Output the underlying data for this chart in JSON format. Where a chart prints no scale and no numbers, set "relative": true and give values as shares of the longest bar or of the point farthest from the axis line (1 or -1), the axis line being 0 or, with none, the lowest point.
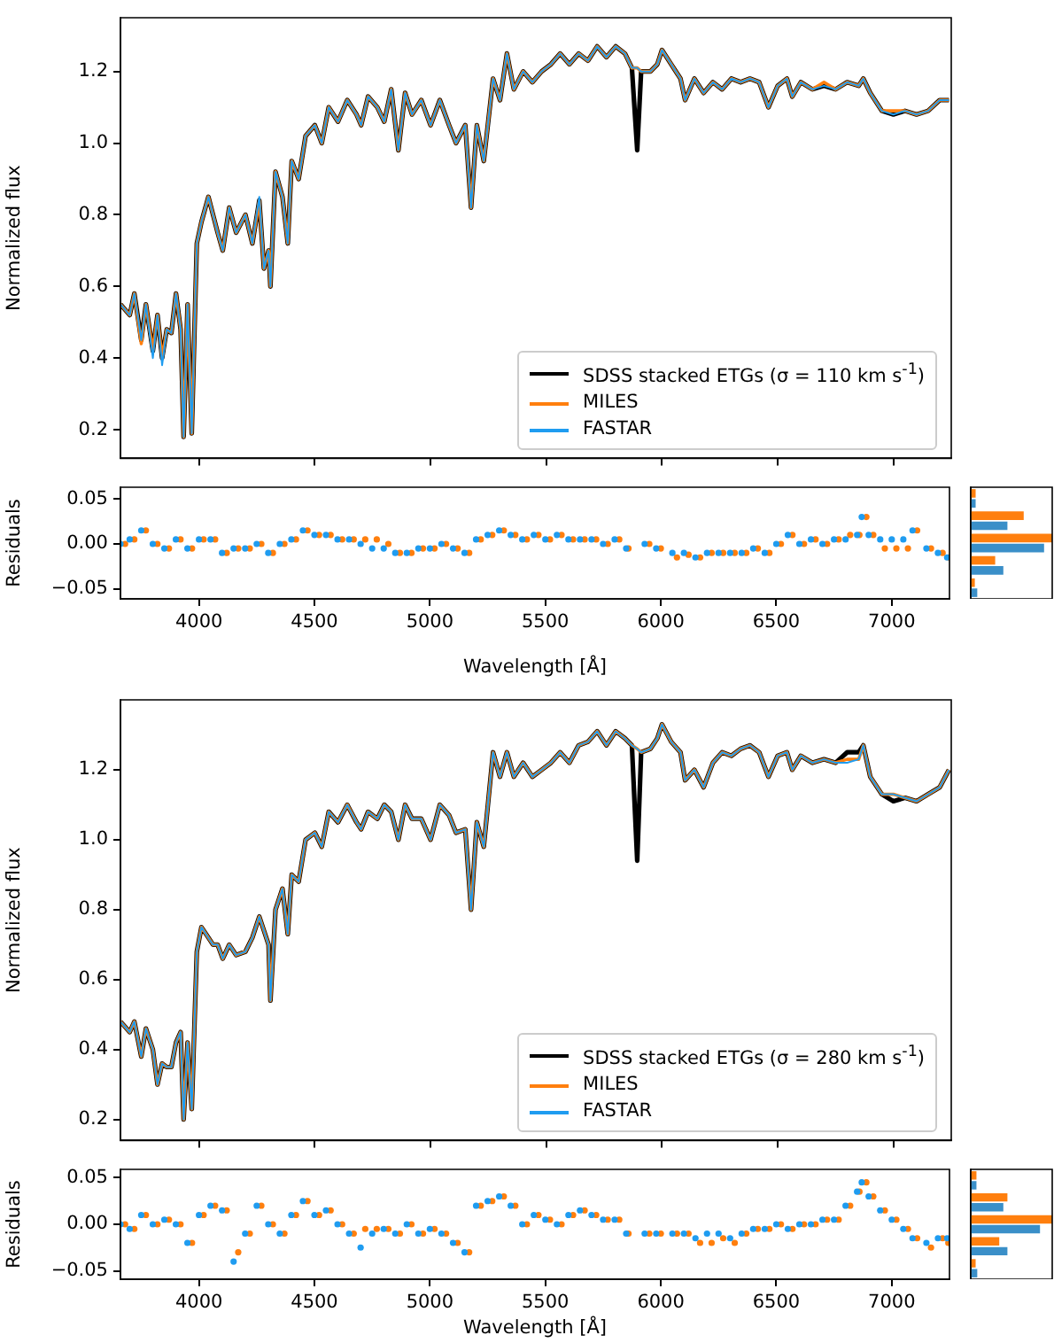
{
  "chart_data": [
    {
      "type": "line",
      "ylabel": "Normalized flux",
      "xlim": [
        3660,
        7250
      ],
      "xticks": [
        {
          "value": 4000,
          "label": null
        },
        {
          "value": 4500,
          "label": null
        },
        {
          "value": 5000,
          "label": null
        },
        {
          "value": 5500,
          "label": null
        },
        {
          "value": 6000,
          "label": null
        },
        {
          "value": 6500,
          "label": null
        },
        {
          "value": 7000,
          "label": null
        }
      ],
      "ylim": [
        0.12,
        1.35
      ],
      "yticks": [
        0.2,
        0.4,
        0.6,
        0.8,
        {
          "value": 1,
          "label": "1.0"
        },
        1.2
      ],
      "tick_labels": "y",
      "legend": "bottom right",
      "x": [
        3660,
        3700,
        3720,
        3750,
        3770,
        3800,
        3820,
        3840,
        3860,
        3880,
        3900,
        3920,
        3933,
        3950,
        3968,
        3990,
        4010,
        4040,
        4060,
        4080,
        4102,
        4130,
        4160,
        4200,
        4230,
        4260,
        4280,
        4300,
        4308,
        4330,
        4360,
        4383,
        4400,
        4430,
        4460,
        4500,
        4530,
        4560,
        4600,
        4640,
        4680,
        4700,
        4730,
        4770,
        4800,
        4830,
        4861,
        4890,
        4920,
        4960,
        5000,
        5040,
        5080,
        5110,
        5150,
        5175,
        5200,
        5230,
        5270,
        5300,
        5330,
        5360,
        5400,
        5440,
        5480,
        5520,
        5560,
        5600,
        5640,
        5680,
        5720,
        5760,
        5800,
        5840,
        5870,
        5893,
        5910,
        5950,
        5980,
        6000,
        6040,
        6080,
        6100,
        6140,
        6180,
        6220,
        6260,
        6300,
        6340,
        6380,
        6420,
        6460,
        6500,
        6540,
        6563,
        6600,
        6650,
        6700,
        6750,
        6800,
        6850,
        6870,
        6900,
        6950,
        7000,
        7050,
        7100,
        7150,
        7200,
        7240
      ],
      "series": [
        {
          "name": "SDSS stacked ETGs (σ = 110 km s$^{-1}$)",
          "color": "#000000",
          "values": [
            0.55,
            0.52,
            0.58,
            0.45,
            0.55,
            0.42,
            0.52,
            0.4,
            0.48,
            0.47,
            0.58,
            0.48,
            0.18,
            0.55,
            0.19,
            0.72,
            0.78,
            0.85,
            0.8,
            0.75,
            0.7,
            0.82,
            0.75,
            0.8,
            0.72,
            0.84,
            0.65,
            0.7,
            0.6,
            0.92,
            0.85,
            0.72,
            0.95,
            0.9,
            1.02,
            1.05,
            1.0,
            1.1,
            1.06,
            1.12,
            1.08,
            1.05,
            1.13,
            1.1,
            1.06,
            1.15,
            0.98,
            1.14,
            1.08,
            1.12,
            1.05,
            1.12,
            1.05,
            1.0,
            1.05,
            0.82,
            1.05,
            0.95,
            1.18,
            1.12,
            1.25,
            1.15,
            1.2,
            1.17,
            1.2,
            1.22,
            1.25,
            1.22,
            1.25,
            1.23,
            1.27,
            1.24,
            1.27,
            1.25,
            1.21,
            0.98,
            1.2,
            1.2,
            1.22,
            1.26,
            1.22,
            1.18,
            1.12,
            1.18,
            1.14,
            1.17,
            1.15,
            1.18,
            1.17,
            1.18,
            1.17,
            1.1,
            1.16,
            1.18,
            1.13,
            1.17,
            1.15,
            1.16,
            1.15,
            1.17,
            1.16,
            1.18,
            1.14,
            1.09,
            1.08,
            1.09,
            1.08,
            1.09,
            1.12,
            1.12
          ]
        },
        {
          "name": "MILES",
          "color": "#ff7f0e",
          "values": [
            0.55,
            0.52,
            0.58,
            0.44,
            0.55,
            0.42,
            0.52,
            0.4,
            0.48,
            0.47,
            0.58,
            0.48,
            0.18,
            0.55,
            0.19,
            0.72,
            0.78,
            0.85,
            0.8,
            0.75,
            0.7,
            0.82,
            0.75,
            0.8,
            0.72,
            0.84,
            0.65,
            0.7,
            0.6,
            0.92,
            0.85,
            0.72,
            0.95,
            0.9,
            1.02,
            1.05,
            1.0,
            1.1,
            1.06,
            1.12,
            1.08,
            1.05,
            1.13,
            1.1,
            1.06,
            1.15,
            0.98,
            1.14,
            1.08,
            1.12,
            1.05,
            1.12,
            1.05,
            1.0,
            1.05,
            0.82,
            1.05,
            0.95,
            1.18,
            1.12,
            1.25,
            1.15,
            1.2,
            1.17,
            1.2,
            1.22,
            1.25,
            1.22,
            1.25,
            1.23,
            1.27,
            1.24,
            1.27,
            1.25,
            1.21,
            1.21,
            1.2,
            1.2,
            1.22,
            1.26,
            1.22,
            1.18,
            1.12,
            1.18,
            1.14,
            1.17,
            1.15,
            1.18,
            1.17,
            1.18,
            1.17,
            1.1,
            1.16,
            1.18,
            1.13,
            1.17,
            1.15,
            1.17,
            1.15,
            1.17,
            1.16,
            1.18,
            1.14,
            1.09,
            1.09,
            1.09,
            1.08,
            1.09,
            1.12,
            1.12
          ]
        },
        {
          "name": "FASTAR",
          "color": "#1f9cf0",
          "values": [
            0.55,
            0.52,
            0.58,
            0.45,
            0.55,
            0.4,
            0.52,
            0.38,
            0.48,
            0.47,
            0.58,
            0.48,
            0.18,
            0.55,
            0.19,
            0.72,
            0.78,
            0.85,
            0.8,
            0.75,
            0.7,
            0.82,
            0.75,
            0.8,
            0.72,
            0.85,
            0.65,
            0.7,
            0.6,
            0.92,
            0.85,
            0.72,
            0.95,
            0.9,
            1.02,
            1.05,
            1.0,
            1.1,
            1.06,
            1.12,
            1.08,
            1.05,
            1.13,
            1.1,
            1.06,
            1.15,
            0.98,
            1.14,
            1.08,
            1.12,
            1.05,
            1.12,
            1.05,
            1.0,
            1.05,
            0.82,
            1.05,
            0.95,
            1.18,
            1.12,
            1.25,
            1.15,
            1.2,
            1.17,
            1.2,
            1.22,
            1.25,
            1.22,
            1.25,
            1.23,
            1.27,
            1.24,
            1.27,
            1.25,
            1.21,
            1.21,
            1.2,
            1.2,
            1.22,
            1.26,
            1.22,
            1.18,
            1.12,
            1.18,
            1.14,
            1.17,
            1.15,
            1.18,
            1.17,
            1.18,
            1.17,
            1.1,
            1.16,
            1.18,
            1.13,
            1.17,
            1.15,
            1.16,
            1.15,
            1.17,
            1.16,
            1.18,
            1.14,
            1.09,
            1.08,
            1.09,
            1.08,
            1.09,
            1.12,
            1.12
          ]
        }
      ]
    },
    {
      "type": "scatter",
      "marker": "circle",
      "xlabel": "Wavelength [Å]",
      "ylabel": "Residuals",
      "xlim": [
        3660,
        7250
      ],
      "xticks": [
        4000,
        4500,
        5000,
        5500,
        6000,
        6500,
        7000
      ],
      "ylim": [
        -0.061,
        0.063
      ],
      "yticks": [
        {
          "value": -0.05,
          "label": "−0.05"
        },
        {
          "value": 0,
          "label": "0.00"
        },
        0.05
      ],
      "x": [
        3660,
        3700,
        3750,
        3800,
        3850,
        3900,
        3950,
        4000,
        4050,
        4100,
        4150,
        4200,
        4250,
        4300,
        4350,
        4400,
        4450,
        4500,
        4550,
        4600,
        4650,
        4700,
        4750,
        4800,
        4850,
        4900,
        4950,
        5000,
        5050,
        5100,
        5150,
        5200,
        5250,
        5300,
        5350,
        5400,
        5450,
        5500,
        5550,
        5600,
        5650,
        5700,
        5750,
        5800,
        5850,
        5890,
        5930,
        5980,
        6050,
        6100,
        6150,
        6200,
        6250,
        6300,
        6350,
        6400,
        6450,
        6500,
        6550,
        6600,
        6650,
        6700,
        6750,
        6800,
        6850,
        6870,
        6900,
        6950,
        7000,
        7050,
        7090,
        7150,
        7200,
        7240
      ],
      "series": [
        {
          "color": "#ff7f0e",
          "x": [
            3680,
            3720,
            3770,
            3820,
            3870,
            3920,
            3970,
            4020,
            4070,
            4120,
            4170,
            4220,
            4270,
            4320,
            4370,
            4420,
            4470,
            4520,
            4570,
            4620,
            4670,
            4720,
            4770,
            4820,
            4870,
            4920,
            4970,
            5020,
            5070,
            5120,
            5170,
            5220,
            5270,
            5320,
            5370,
            5420,
            5470,
            5520,
            5570,
            5620,
            5670,
            5720,
            5770,
            5820,
            5860,
            5910,
            5950,
            6000,
            6070,
            6120,
            6170,
            6220,
            6270,
            6320,
            6370,
            6420,
            6470,
            6520,
            6570,
            6620,
            6670,
            6720,
            6770,
            6820,
            6860,
            6890,
            6920,
            6970,
            7020,
            7070,
            7110,
            7170,
            7220,
            7245
          ],
          "values": [
            0.0,
            0.005,
            0.015,
            0.0,
            -0.005,
            0.005,
            -0.005,
            0.005,
            0.005,
            -0.01,
            -0.005,
            -0.005,
            0.0,
            -0.01,
            0.0,
            0.005,
            0.015,
            0.01,
            0.01,
            0.005,
            0.005,
            0.005,
            0.005,
            0.0,
            -0.01,
            -0.01,
            -0.005,
            -0.005,
            0.0,
            -0.005,
            -0.01,
            0.005,
            0.01,
            0.015,
            0.01,
            0.005,
            0.01,
            0.005,
            0.01,
            0.005,
            0.005,
            0.005,
            0.0,
            0.005,
            -0.005,
            null,
            0.0,
            -0.005,
            -0.015,
            -0.012,
            -0.015,
            -0.01,
            -0.01,
            -0.01,
            -0.01,
            -0.005,
            -0.01,
            0.0,
            0.01,
            0.0,
            0.005,
            0.0,
            0.005,
            0.01,
            0.01,
            0.03,
            0.01,
            -0.005,
            -0.005,
            -0.005,
            0.015,
            -0.005,
            -0.01,
            -0.015
          ]
        },
        {
          "color": "#1f9cf0",
          "values": [
            0.0,
            0.005,
            0.015,
            0.0,
            -0.005,
            0.005,
            -0.005,
            0.005,
            0.005,
            -0.01,
            -0.005,
            -0.005,
            0.0,
            -0.01,
            0.0,
            0.005,
            0.015,
            0.01,
            0.01,
            0.005,
            0.005,
            0.0,
            -0.005,
            -0.005,
            -0.01,
            -0.01,
            -0.005,
            -0.005,
            0.0,
            -0.005,
            -0.01,
            0.005,
            0.01,
            0.015,
            0.01,
            0.005,
            0.01,
            0.005,
            0.01,
            0.005,
            0.005,
            0.005,
            0.0,
            0.005,
            -0.005,
            null,
            0.0,
            -0.005,
            -0.01,
            -0.01,
            -0.015,
            -0.01,
            -0.01,
            -0.01,
            -0.01,
            -0.005,
            -0.01,
            0.0,
            0.01,
            0.0,
            0.005,
            0.0,
            0.005,
            0.005,
            0.01,
            0.03,
            0.01,
            0.005,
            0.005,
            0.005,
            0.015,
            -0.005,
            -0.01,
            -0.015
          ]
        }
      ]
    },
    {
      "type": "bar",
      "orientation": "horizontal",
      "relative": true,
      "tick_labels": false,
      "categories": [
        null,
        null,
        null,
        null,
        null
      ],
      "series": [
        {
          "color": "#ff7f0e",
          "values": [
            0.06,
            0.65,
            1.0,
            0.3,
            0.05
          ]
        },
        {
          "color": "#3a8fc8",
          "values": [
            0.06,
            0.45,
            0.9,
            0.4,
            0.08
          ]
        }
      ]
    },
    {
      "type": "line",
      "ylabel": "Normalized flux",
      "xlim": [
        3660,
        7250
      ],
      "xticks": [
        {
          "value": 4000,
          "label": null
        },
        {
          "value": 4500,
          "label": null
        },
        {
          "value": 5000,
          "label": null
        },
        {
          "value": 5500,
          "label": null
        },
        {
          "value": 6000,
          "label": null
        },
        {
          "value": 6500,
          "label": null
        },
        {
          "value": 7000,
          "label": null
        }
      ],
      "ylim": [
        0.14,
        1.4
      ],
      "yticks": [
        0.2,
        0.4,
        0.6,
        0.8,
        {
          "value": 1,
          "label": "1.0"
        },
        1.2
      ],
      "tick_labels": "y",
      "legend": "bottom right",
      "x": [
        3660,
        3700,
        3720,
        3750,
        3770,
        3800,
        3820,
        3840,
        3860,
        3880,
        3900,
        3920,
        3933,
        3950,
        3968,
        3990,
        4010,
        4040,
        4060,
        4080,
        4102,
        4130,
        4160,
        4200,
        4230,
        4260,
        4280,
        4300,
        4308,
        4330,
        4360,
        4383,
        4400,
        4430,
        4460,
        4500,
        4530,
        4560,
        4600,
        4640,
        4680,
        4700,
        4730,
        4770,
        4800,
        4830,
        4861,
        4890,
        4920,
        4960,
        5000,
        5040,
        5080,
        5110,
        5150,
        5175,
        5200,
        5230,
        5270,
        5300,
        5330,
        5360,
        5400,
        5440,
        5480,
        5520,
        5560,
        5600,
        5640,
        5680,
        5720,
        5760,
        5800,
        5840,
        5870,
        5893,
        5910,
        5950,
        5980,
        6000,
        6040,
        6080,
        6100,
        6140,
        6180,
        6220,
        6260,
        6300,
        6340,
        6380,
        6420,
        6460,
        6500,
        6540,
        6563,
        6600,
        6650,
        6700,
        6750,
        6800,
        6850,
        6870,
        6900,
        6950,
        7000,
        7050,
        7100,
        7150,
        7200,
        7240
      ],
      "series": [
        {
          "name": "SDSS stacked ETGs (σ = 280 km s$^{-1}$)",
          "color": "#000000",
          "values": [
            0.48,
            0.45,
            0.48,
            0.38,
            0.46,
            0.4,
            0.3,
            0.36,
            0.35,
            0.35,
            0.42,
            0.45,
            0.2,
            0.42,
            0.23,
            0.68,
            0.75,
            0.72,
            0.7,
            0.7,
            0.66,
            0.7,
            0.67,
            0.68,
            0.72,
            0.78,
            0.74,
            0.7,
            0.54,
            0.8,
            0.86,
            0.73,
            0.9,
            0.88,
            1.0,
            1.02,
            0.98,
            1.08,
            1.05,
            1.1,
            1.05,
            1.03,
            1.08,
            1.06,
            1.1,
            1.08,
            1.0,
            1.1,
            1.06,
            1.06,
            1.0,
            1.1,
            1.07,
            1.02,
            1.03,
            0.8,
            1.05,
            0.98,
            1.25,
            1.18,
            1.25,
            1.18,
            1.22,
            1.18,
            1.2,
            1.22,
            1.25,
            1.22,
            1.27,
            1.28,
            1.31,
            1.27,
            1.31,
            1.29,
            1.27,
            0.94,
            1.25,
            1.26,
            1.29,
            1.33,
            1.28,
            1.25,
            1.17,
            1.2,
            1.15,
            1.22,
            1.25,
            1.24,
            1.26,
            1.27,
            1.25,
            1.18,
            1.24,
            1.25,
            1.2,
            1.24,
            1.22,
            1.23,
            1.22,
            1.25,
            1.25,
            1.27,
            1.18,
            1.13,
            1.11,
            1.12,
            1.11,
            1.13,
            1.15,
            1.2
          ]
        },
        {
          "name": "MILES",
          "color": "#ff7f0e",
          "values": [
            0.48,
            0.45,
            0.48,
            0.38,
            0.46,
            0.4,
            0.3,
            0.36,
            0.35,
            0.35,
            0.42,
            0.45,
            0.2,
            0.42,
            0.23,
            0.68,
            0.75,
            0.72,
            0.7,
            0.7,
            0.66,
            0.7,
            0.67,
            0.68,
            0.72,
            0.78,
            0.74,
            0.7,
            0.54,
            0.8,
            0.86,
            0.73,
            0.9,
            0.88,
            1.0,
            1.02,
            0.98,
            1.08,
            1.05,
            1.1,
            1.05,
            1.03,
            1.08,
            1.06,
            1.1,
            1.08,
            1.0,
            1.1,
            1.06,
            1.06,
            1.0,
            1.1,
            1.07,
            1.02,
            1.03,
            0.8,
            1.05,
            0.98,
            1.25,
            1.18,
            1.25,
            1.18,
            1.22,
            1.18,
            1.2,
            1.22,
            1.25,
            1.22,
            1.27,
            1.28,
            1.31,
            1.27,
            1.31,
            1.29,
            1.27,
            1.26,
            1.25,
            1.26,
            1.29,
            1.33,
            1.28,
            1.25,
            1.17,
            1.2,
            1.15,
            1.22,
            1.25,
            1.24,
            1.26,
            1.27,
            1.25,
            1.18,
            1.24,
            1.25,
            1.2,
            1.24,
            1.22,
            1.23,
            1.22,
            1.23,
            1.23,
            1.27,
            1.18,
            1.13,
            1.13,
            1.12,
            1.11,
            1.13,
            1.15,
            1.2
          ]
        },
        {
          "name": "FASTAR",
          "color": "#1f9cf0",
          "values": [
            0.48,
            0.45,
            0.48,
            0.38,
            0.46,
            0.4,
            0.3,
            0.36,
            0.35,
            0.35,
            0.42,
            0.45,
            0.2,
            0.42,
            0.23,
            0.68,
            0.75,
            0.72,
            0.7,
            0.7,
            0.66,
            0.7,
            0.67,
            0.68,
            0.72,
            0.78,
            0.74,
            0.7,
            0.54,
            0.8,
            0.86,
            0.73,
            0.9,
            0.88,
            1.0,
            1.02,
            0.98,
            1.08,
            1.05,
            1.1,
            1.05,
            1.03,
            1.08,
            1.06,
            1.1,
            1.08,
            1.0,
            1.1,
            1.06,
            1.06,
            1.0,
            1.1,
            1.07,
            1.02,
            1.03,
            0.8,
            1.05,
            0.98,
            1.25,
            1.18,
            1.25,
            1.18,
            1.22,
            1.18,
            1.2,
            1.22,
            1.25,
            1.22,
            1.27,
            1.28,
            1.31,
            1.27,
            1.31,
            1.29,
            1.27,
            1.26,
            1.25,
            1.26,
            1.29,
            1.33,
            1.28,
            1.25,
            1.17,
            1.2,
            1.15,
            1.22,
            1.25,
            1.24,
            1.26,
            1.27,
            1.25,
            1.18,
            1.24,
            1.25,
            1.2,
            1.24,
            1.22,
            1.23,
            1.22,
            1.22,
            1.23,
            1.27,
            1.18,
            1.13,
            1.13,
            1.12,
            1.11,
            1.13,
            1.15,
            1.2
          ]
        }
      ]
    },
    {
      "type": "scatter",
      "marker": "circle",
      "xlabel": "Wavelength [Å]",
      "ylabel": "Residuals",
      "xlim": [
        3660,
        7250
      ],
      "xticks": [
        4000,
        4500,
        5000,
        5500,
        6000,
        6500,
        7000
      ],
      "ylim": [
        -0.059,
        0.059
      ],
      "yticks": [
        {
          "value": -0.05,
          "label": "−0.05"
        },
        {
          "value": 0,
          "label": "0.00"
        },
        0.05
      ],
      "x": [
        3660,
        3700,
        3750,
        3800,
        3850,
        3900,
        3950,
        4000,
        4050,
        4100,
        4150,
        4200,
        4250,
        4300,
        4350,
        4400,
        4450,
        4500,
        4550,
        4600,
        4650,
        4700,
        4750,
        4800,
        4850,
        4900,
        4950,
        5000,
        5050,
        5100,
        5150,
        5200,
        5250,
        5300,
        5350,
        5400,
        5450,
        5500,
        5550,
        5600,
        5650,
        5700,
        5750,
        5800,
        5850,
        5890,
        5930,
        5980,
        6050,
        6100,
        6150,
        6200,
        6250,
        6300,
        6350,
        6400,
        6450,
        6500,
        6550,
        6600,
        6650,
        6700,
        6750,
        6800,
        6850,
        6870,
        6900,
        6950,
        7000,
        7050,
        7090,
        7150,
        7200,
        7240
      ],
      "series": [
        {
          "color": "#ff7f0e",
          "x": [
            3680,
            3720,
            3770,
            3820,
            3870,
            3920,
            3970,
            4020,
            4070,
            4120,
            4170,
            4220,
            4270,
            4320,
            4370,
            4420,
            4470,
            4520,
            4570,
            4620,
            4670,
            4720,
            4770,
            4820,
            4870,
            4920,
            4970,
            5020,
            5070,
            5120,
            5170,
            5220,
            5270,
            5320,
            5370,
            5420,
            5470,
            5520,
            5570,
            5620,
            5670,
            5720,
            5770,
            5820,
            5860,
            5910,
            5950,
            6000,
            6070,
            6120,
            6170,
            6220,
            6270,
            6320,
            6370,
            6420,
            6470,
            6520,
            6570,
            6620,
            6670,
            6720,
            6770,
            6820,
            6860,
            6890,
            6920,
            6970,
            7020,
            7070,
            7110,
            7170,
            7220,
            7245
          ],
          "values": [
            0.0,
            -0.005,
            0.01,
            0.0,
            0.005,
            0.0,
            -0.02,
            0.01,
            0.02,
            0.015,
            -0.03,
            -0.01,
            0.02,
            0.0,
            -0.01,
            0.01,
            0.025,
            0.01,
            0.015,
            0.0,
            -0.01,
            -0.005,
            -0.005,
            -0.005,
            -0.01,
            0.0,
            -0.01,
            -0.005,
            -0.01,
            -0.02,
            -0.03,
            0.02,
            0.025,
            0.03,
            0.02,
            0.0,
            0.01,
            0.005,
            0.0,
            0.01,
            0.015,
            0.01,
            0.005,
            0.005,
            -0.01,
            null,
            -0.01,
            -0.01,
            -0.01,
            -0.01,
            -0.02,
            -0.02,
            -0.015,
            -0.02,
            -0.01,
            -0.005,
            -0.005,
            0.0,
            -0.005,
            0.0,
            0.0,
            0.005,
            0.005,
            0.02,
            0.035,
            0.045,
            0.03,
            0.015,
            0.005,
            -0.005,
            -0.015,
            -0.025,
            -0.015,
            -0.02
          ]
        },
        {
          "color": "#1f9cf0",
          "values": [
            0.0,
            -0.005,
            0.01,
            0.0,
            0.005,
            0.0,
            -0.02,
            0.01,
            0.02,
            0.015,
            -0.04,
            -0.01,
            0.02,
            0.0,
            -0.01,
            0.01,
            0.025,
            0.01,
            0.015,
            0.0,
            -0.01,
            -0.025,
            -0.01,
            -0.005,
            -0.01,
            0.0,
            -0.01,
            -0.005,
            -0.01,
            -0.02,
            -0.03,
            0.02,
            0.025,
            0.03,
            0.02,
            0.0,
            0.01,
            0.005,
            0.0,
            0.01,
            0.015,
            0.01,
            0.005,
            0.005,
            -0.01,
            null,
            -0.01,
            -0.01,
            -0.01,
            -0.01,
            -0.015,
            -0.01,
            -0.01,
            -0.015,
            -0.01,
            -0.005,
            -0.005,
            0.0,
            -0.005,
            0.0,
            0.0,
            0.005,
            0.005,
            0.02,
            0.035,
            0.045,
            0.03,
            0.015,
            0.005,
            -0.005,
            -0.015,
            -0.02,
            -0.015,
            -0.015
          ]
        }
      ]
    },
    {
      "type": "bar",
      "orientation": "horizontal",
      "relative": true,
      "tick_labels": false,
      "categories": [
        null,
        null,
        null,
        null,
        null
      ],
      "series": [
        {
          "color": "#ff7f0e",
          "values": [
            0.07,
            0.45,
            1.0,
            0.35,
            0.06
          ]
        },
        {
          "color": "#3a8fc8",
          "values": [
            0.07,
            0.4,
            0.85,
            0.45,
            0.08
          ]
        }
      ]
    }
  ]
}
